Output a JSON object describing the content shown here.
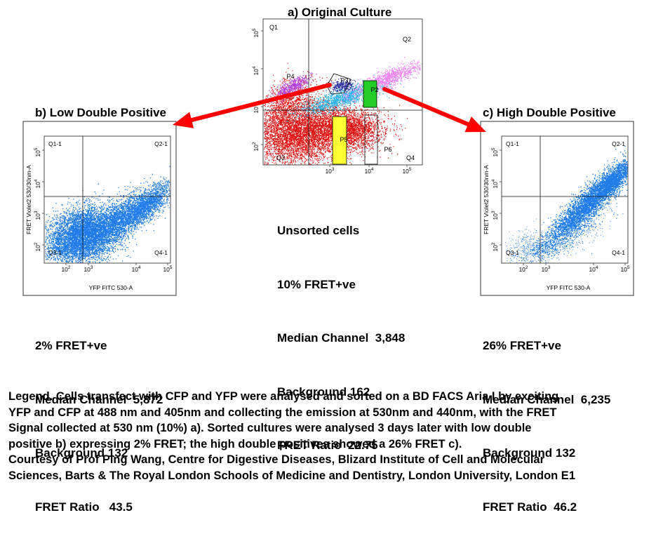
{
  "panel_a": {
    "title": "a) Original Culture",
    "quadrant_labels": [
      "Q1",
      "Q2",
      "Q3",
      "Q4"
    ],
    "gate_labels": [
      "P2",
      "P3",
      "P4",
      "P5",
      "P6"
    ],
    "stats": [
      "Unsorted cells",
      "10% FRET+ve",
      "Median Channel  3,848",
      "Background 162",
      "FRET Ratio  22.75"
    ]
  },
  "panel_b": {
    "title": "b) Low Double Positive",
    "quadrant_labels": [
      "Q1-1",
      "Q2-1",
      "Q3-1",
      "Q4-1"
    ],
    "stats": [
      "2% FRET+ve",
      "Median Channel  5,872",
      "Background 132",
      "FRET Ratio   43.5"
    ]
  },
  "panel_c": {
    "title": "c) High Double Positive",
    "quadrant_labels": [
      "Q1-1",
      "Q2-1",
      "Q3-1",
      "Q4-1"
    ],
    "stats": [
      "26% FRET+ve",
      "Median Channel  6,235",
      "Background 132",
      "FRET Ratio  46.2"
    ]
  },
  "legend": [
    "Legend. Cells transfect with CFP and YFP were analysed and sorted on a BD FACS Aria I by exciting",
    "YFP and CFP at 488 nm and 405nm and collecting the emission at 530nm and 440nm, with  the FRET",
    "Signal collected at 530 nm  (10%) a). Sorted cultures were analysed 3 days later with low double",
    "positive b) expressing 2% FRET;  the high double positives showed a 26%  FRET c).",
    "Courtesy  of Prof Ping Wang, Centre for Digestive Diseases, Blizard Institute of Cell and Molecular",
    "Sciences, Barts & The Royal London Schools of Medicine and Dentistry, London University, London E1"
  ],
  "colors": {
    "arrow": "#ff0000",
    "population_blue": "#1f7be8",
    "red": "#e01010",
    "cyan": "#2ab3e8",
    "pink": "#f080f0",
    "purple": "#b040e0",
    "gate_green": "#22cc22",
    "gate_yellow": "#ffff33"
  },
  "chart_data": [
    {
      "type": "scatter",
      "title": "a) Original Culture",
      "xscale": "log",
      "yscale": "log",
      "x_tick_labels": [
        "10^3",
        "10^4",
        "10^5"
      ],
      "y_tick_labels": [
        "10^5",
        "10^4",
        "10^3",
        "10^2"
      ],
      "quadrants": [
        "Q1",
        "Q2",
        "Q3",
        "Q4"
      ],
      "gates": [
        "P2",
        "P3",
        "P4",
        "P5",
        "P6"
      ]
    },
    {
      "type": "scatter",
      "title": "b) Low Double Positive",
      "xlabel": "YFP FITC 530-A",
      "ylabel": "FRET Violet2 530/30nm-A",
      "xscale": "log",
      "yscale": "log",
      "x_tick_labels": [
        "10^2",
        "10^3",
        "10^4",
        "10^5"
      ],
      "y_tick_labels": [
        "10^5",
        "10^4",
        "10^3",
        "10^2"
      ],
      "quadrants": [
        "Q1-1",
        "Q2-1",
        "Q3-1",
        "Q4-1"
      ]
    },
    {
      "type": "scatter",
      "title": "c) High Double Positive",
      "xlabel": "YFP FITC 530-A",
      "ylabel": "FRET Violet2 530/30nm-A",
      "xscale": "log",
      "yscale": "log",
      "x_tick_labels": [
        "10^2",
        "10^3",
        "10^4",
        "10^5"
      ],
      "y_tick_labels": [
        "10^5",
        "10^4",
        "10^3",
        "10^2"
      ],
      "quadrants": [
        "Q1-1",
        "Q2-1",
        "Q3-1",
        "Q4-1"
      ]
    }
  ]
}
